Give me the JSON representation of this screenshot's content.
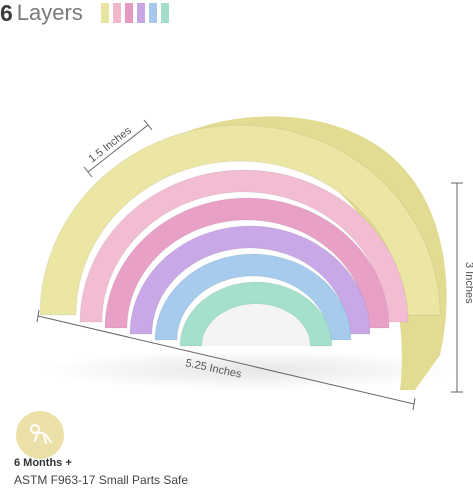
{
  "header": {
    "count": "6",
    "label": "Layers",
    "swatch_colors": [
      "#e8e39f",
      "#f1b8cd",
      "#e59bc1",
      "#c7a6e3",
      "#a6c8eb",
      "#a3ddc9"
    ]
  },
  "dimensions": {
    "depth": "1.5 Inches",
    "height": "3 Inches",
    "width": "5.25 Inches"
  },
  "rainbow": {
    "arc_colors": [
      "#ece6a4",
      "#f2bdd2",
      "#e9a0c6",
      "#c8a8e6",
      "#a7cbed",
      "#a4e0cb"
    ]
  },
  "badge": {
    "icon": "baby-crawling-icon",
    "color": "#ebe0a8",
    "age": "6 Months +",
    "safety": "ASTM F963-17 Small Parts Safe"
  }
}
